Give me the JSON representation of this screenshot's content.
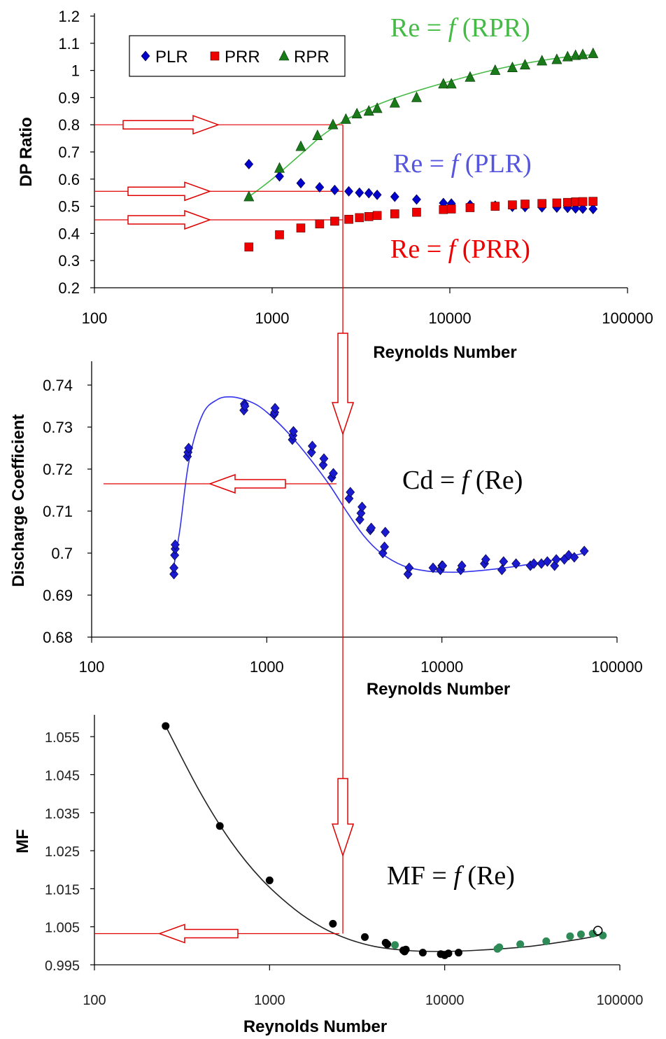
{
  "colors": {
    "plr": "#0000cc",
    "prr": "#ee0000",
    "rpr": "#1a7a1a",
    "rpr_fit": "#44bb44",
    "cd_marker": "#1a1ad0",
    "cd_fit": "#3333ee",
    "mf_black": "#000000",
    "mf_green": "#2e8b57",
    "guide": "#e00000"
  },
  "chart_data": [
    {
      "type": "scatter",
      "xscale": "log",
      "xlim": [
        100,
        100000
      ],
      "ylim": [
        0.2,
        1.2
      ],
      "grid": false,
      "xlabel": "Reynolds Number",
      "ylabel": "DP Ratio",
      "xticks": [
        "100",
        "1000",
        "10000",
        "100000"
      ],
      "yticks": [
        "0.2",
        "0.3",
        "0.4",
        "0.5",
        "0.6",
        "0.7",
        "0.8",
        "0.9",
        "1",
        "1.1",
        "1.2"
      ],
      "legend": {
        "placement": "top-left",
        "entries": [
          "PLR",
          "PRR",
          "RPR"
        ]
      },
      "series": [
        {
          "name": "PLR",
          "marker": "diamond",
          "x": [
            740,
            1100,
            1450,
            1850,
            2250,
            2700,
            3100,
            3500,
            3900,
            4900,
            6500,
            9200,
            10200,
            13000,
            18000,
            22500,
            26500,
            33000,
            40000,
            46000,
            51000,
            56000,
            64000
          ],
          "y": [
            0.655,
            0.61,
            0.585,
            0.57,
            0.56,
            0.555,
            0.55,
            0.548,
            0.542,
            0.535,
            0.525,
            0.512,
            0.51,
            0.505,
            0.502,
            0.498,
            0.497,
            0.496,
            0.495,
            0.494,
            0.492,
            0.491,
            0.49
          ]
        },
        {
          "name": "PRR",
          "marker": "square",
          "x": [
            740,
            1100,
            1450,
            1850,
            2250,
            2700,
            3100,
            3500,
            3900,
            4900,
            6500,
            9200,
            10200,
            13000,
            18000,
            22500,
            26500,
            33000,
            40000,
            46000,
            51000,
            56000,
            64000
          ],
          "y": [
            0.35,
            0.395,
            0.42,
            0.435,
            0.445,
            0.452,
            0.458,
            0.462,
            0.466,
            0.472,
            0.478,
            0.488,
            0.49,
            0.495,
            0.5,
            0.505,
            0.508,
            0.51,
            0.512,
            0.514,
            0.516,
            0.517,
            0.518
          ]
        },
        {
          "name": "RPR",
          "marker": "triangle",
          "x": [
            740,
            1100,
            1450,
            1800,
            2200,
            2600,
            3000,
            3500,
            3900,
            4900,
            6500,
            9200,
            10200,
            13000,
            18000,
            22500,
            26500,
            33000,
            40000,
            46000,
            51000,
            56000,
            64000
          ],
          "y": [
            0.535,
            0.64,
            0.72,
            0.76,
            0.8,
            0.82,
            0.84,
            0.85,
            0.86,
            0.88,
            0.9,
            0.95,
            0.95,
            0.975,
            1.0,
            1.01,
            1.02,
            1.035,
            1.04,
            1.05,
            1.055,
            1.058,
            1.062
          ]
        }
      ],
      "fit_rpr": {
        "x": [
          740,
          1000,
          1500,
          2000,
          3000,
          5000,
          10000,
          20000,
          40000,
          64000
        ],
        "y": [
          0.535,
          0.6,
          0.7,
          0.77,
          0.84,
          0.9,
          0.96,
          1.01,
          1.045,
          1.058
        ]
      },
      "annotations": [
        "Re = f (RPR)",
        "Re = f (PLR)",
        "Re = f (PRR)"
      ],
      "guides": {
        "x": 2500,
        "y": [
          0.8,
          0.555,
          0.45
        ]
      }
    },
    {
      "type": "scatter",
      "xscale": "log",
      "xlim": [
        100,
        100000
      ],
      "ylim": [
        0.68,
        0.745
      ],
      "grid": false,
      "xlabel": "Reynolds Number",
      "ylabel": "Discharge Coefficient",
      "xticks": [
        "100",
        "1000",
        "10000",
        "100000"
      ],
      "yticks": [
        "0.68",
        "0.69",
        "0.7",
        "0.71",
        "0.72",
        "0.73",
        "0.74"
      ],
      "series": [
        {
          "marker": "diamond",
          "x": [
            295,
            295,
            298,
            300,
            300,
            352,
            355,
            358,
            740,
            745,
            750,
            1100,
            1110,
            1115,
            1400,
            1410,
            1420,
            1800,
            1820,
            2100,
            2120,
            2350,
            2400,
            2950,
            3000,
            3400,
            3450,
            3500,
            3900,
            3950,
            4600,
            4700,
            4750,
            6400,
            6500,
            8900,
            9800,
            10000,
            10100,
            12800,
            13000,
            17500,
            17800,
            22000,
            22500,
            26500,
            32000,
            33500,
            37000,
            40000,
            44000,
            45000,
            50000,
            53000,
            57000,
            65000
          ],
          "y": [
            0.695,
            0.6965,
            0.6995,
            0.701,
            0.702,
            0.723,
            0.724,
            0.725,
            0.734,
            0.7355,
            0.735,
            0.733,
            0.7335,
            0.7345,
            0.727,
            0.728,
            0.729,
            0.724,
            0.7255,
            0.721,
            0.7225,
            0.718,
            0.719,
            0.713,
            0.7145,
            0.708,
            0.7095,
            0.711,
            0.7055,
            0.706,
            0.7,
            0.7015,
            0.705,
            0.695,
            0.6965,
            0.6965,
            0.696,
            0.697,
            0.697,
            0.696,
            0.697,
            0.6975,
            0.6985,
            0.696,
            0.698,
            0.6975,
            0.697,
            0.6975,
            0.6975,
            0.698,
            0.697,
            0.6985,
            0.6985,
            0.6995,
            0.699,
            0.7005
          ]
        }
      ],
      "fit": {
        "x": [
          295,
          320,
          360,
          430,
          520,
          620,
          750,
          900,
          1100,
          1400,
          1800,
          2300,
          2900,
          3600,
          4500,
          6000,
          8000,
          10000,
          13000,
          20000,
          30000,
          45000,
          65000
        ],
        "y": [
          0.697,
          0.706,
          0.722,
          0.733,
          0.7365,
          0.7372,
          0.7365,
          0.735,
          0.732,
          0.7275,
          0.722,
          0.716,
          0.7095,
          0.704,
          0.7,
          0.697,
          0.6958,
          0.6955,
          0.6955,
          0.6962,
          0.6972,
          0.6985,
          0.7
        ]
      },
      "annotations": [
        "Cd = f (Re)"
      ],
      "guides": {
        "x": 2500,
        "y": [
          0.7165
        ]
      }
    },
    {
      "type": "scatter",
      "xscale": "log",
      "xlim": [
        100,
        100000
      ],
      "ylim": [
        0.995,
        1.06
      ],
      "grid": false,
      "xlabel": "Reynolds Number",
      "ylabel": "MF",
      "xticks": [
        "100",
        "1000",
        "10000",
        "100000"
      ],
      "yticks": [
        "0.995",
        "1.005",
        "1.015",
        "1.025",
        "1.035",
        "1.045",
        "1.055"
      ],
      "series": [
        {
          "marker": "circle",
          "color_key": "mf_black",
          "x": [
            255,
            520,
            1000,
            2300,
            3500,
            4600,
            4700,
            5800,
            5900,
            6000,
            7500,
            9500,
            10000,
            10500,
            12000
          ],
          "y": [
            1.0578,
            1.0315,
            1.0172,
            1.0058,
            1.0023,
            1.0008,
            1.0004,
            0.9988,
            0.9985,
            0.999,
            0.9982,
            0.9978,
            0.9975,
            0.998,
            0.9982
          ]
        },
        {
          "marker": "circle",
          "color_key": "mf_green",
          "x": [
            5200,
            20000,
            20500,
            27000,
            38000,
            52000,
            60000,
            70000,
            80000
          ],
          "y": [
            1.0002,
            0.9992,
            0.9996,
            1.0004,
            1.0012,
            1.0025,
            1.003,
            1.0032,
            1.0027
          ]
        }
      ],
      "open_marker": {
        "x": 75000,
        "y": 1.004
      },
      "fit": {
        "x": [
          255,
          400,
          600,
          900,
          1400,
          2000,
          2800,
          4000,
          6000,
          9000,
          15000,
          30000,
          60000,
          80000
        ],
        "y": [
          1.0578,
          1.0405,
          1.0275,
          1.0175,
          1.0095,
          1.0048,
          1.0018,
          0.9998,
          0.9988,
          0.9985,
          0.9988,
          0.9998,
          1.0018,
          1.003
        ]
      },
      "annotations": [
        "MF = f (Re)"
      ],
      "guides": {
        "x": 2500,
        "y": [
          1.0032
        ]
      }
    }
  ]
}
